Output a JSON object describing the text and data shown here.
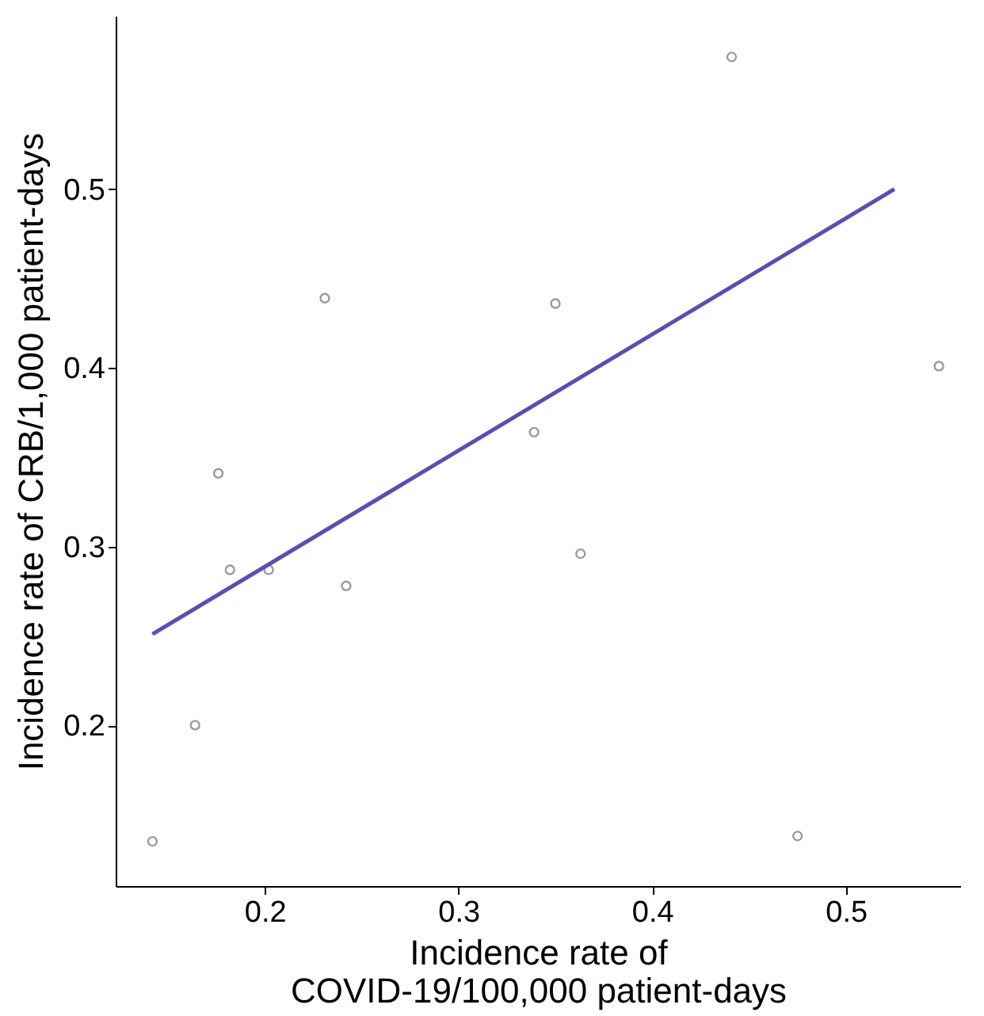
{
  "chart_data": {
    "type": "scatter",
    "xlabel": "Incidence rate of\nCOVID-19/100,000 patient-days",
    "ylabel": "Incidence rate of CRB/1,000 patient-days",
    "xlim": [
      0.123,
      0.559
    ],
    "ylim": [
      0.11,
      0.597
    ],
    "xticks": [
      0.2,
      0.3,
      0.4,
      0.5
    ],
    "yticks": [
      0.2,
      0.3,
      0.4,
      0.5
    ],
    "grid": false,
    "marker": "circle",
    "series": [
      {
        "color": "#707070",
        "x": [
          0.142,
          0.164,
          0.182,
          0.176,
          0.202,
          0.231,
          0.242,
          0.339,
          0.35,
          0.363,
          0.441,
          0.475,
          0.548
        ],
        "values": [
          0.135,
          0.2,
          0.287,
          0.341,
          0.287,
          0.439,
          0.278,
          0.364,
          0.436,
          0.296,
          0.574,
          0.138,
          0.401
        ]
      },
      {
        "type": "line",
        "color": "#5b4db3",
        "marker": "none",
        "line_style": "solid",
        "x": [
          0.142,
          0.525
        ],
        "values": [
          0.251,
          0.5
        ]
      }
    ]
  }
}
